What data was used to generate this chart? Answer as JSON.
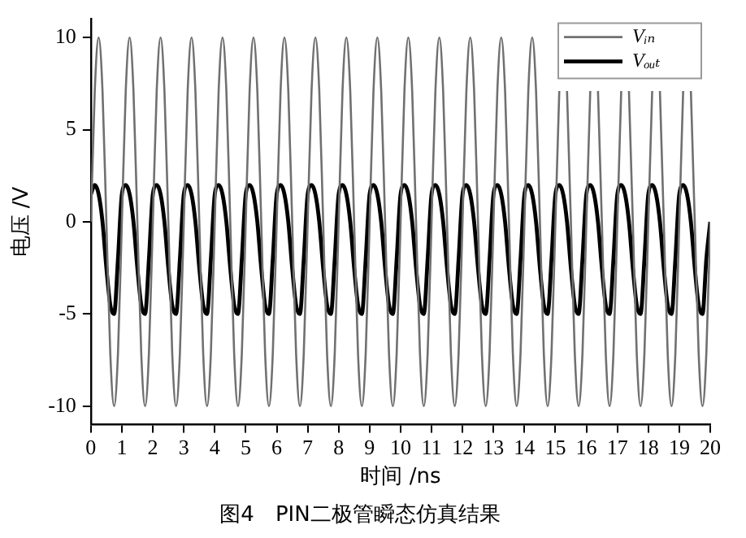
{
  "chart_data": {
    "type": "line",
    "title": "图4　PIN二极管瞬态仿真结果",
    "xlabel": "时间 /ns",
    "ylabel": "电压 /V",
    "xlim": [
      0,
      20
    ],
    "xticks": [
      0,
      1,
      2,
      3,
      4,
      5,
      6,
      7,
      8,
      9,
      10,
      11,
      12,
      13,
      14,
      15,
      16,
      17,
      18,
      19,
      20
    ],
    "ylim": [
      -11,
      11
    ],
    "yticks": [
      -10,
      -5,
      0,
      5,
      10
    ],
    "grid": false,
    "legend": "top right",
    "marker": "none",
    "line_style": "solid",
    "x": [
      0,
      0.125,
      0.25,
      0.375,
      0.5,
      0.625,
      0.75,
      0.875,
      1,
      1.125,
      1.25,
      1.375,
      1.5,
      1.625,
      1.75,
      1.875,
      2,
      2.125,
      2.25,
      2.375,
      2.5,
      2.625,
      2.75,
      2.875,
      3,
      3.125,
      3.25,
      3.375,
      3.5,
      3.625,
      3.75,
      3.875,
      4,
      4.125,
      4.25,
      4.375,
      4.5,
      4.625,
      4.75,
      4.875,
      5,
      5.125,
      5.25,
      5.375,
      5.5,
      5.625,
      5.75,
      5.875,
      6,
      6.125,
      6.25,
      6.375,
      6.5,
      6.625,
      6.75,
      6.875,
      7,
      7.125,
      7.25,
      7.375,
      7.5,
      7.625,
      7.75,
      7.875,
      8,
      8.125,
      8.25,
      8.375,
      8.5,
      8.625,
      8.75,
      8.875,
      9,
      9.125,
      9.25,
      9.375,
      9.5,
      9.625,
      9.75,
      9.875,
      10,
      10.125,
      10.25,
      10.375,
      10.5,
      10.625,
      10.75,
      10.875,
      11,
      11.125,
      11.25,
      11.375,
      11.5,
      11.625,
      11.75,
      11.875,
      12,
      12.125,
      12.25,
      12.375,
      12.5,
      12.625,
      12.75,
      12.875,
      13,
      13.125,
      13.25,
      13.375,
      13.5,
      13.625,
      13.75,
      13.875,
      14,
      14.125,
      14.25,
      14.375,
      14.5,
      14.625,
      14.75,
      14.875,
      15,
      15.125,
      15.25,
      15.375,
      15.5,
      15.625,
      15.75,
      15.875,
      16,
      16.125,
      16.25,
      16.375,
      16.5,
      16.625,
      16.75,
      16.875,
      17,
      17.125,
      17.25,
      17.375,
      17.5,
      17.625,
      17.75,
      17.875,
      18,
      18.125,
      18.25,
      18.375,
      18.5,
      18.625,
      18.75,
      18.875,
      19,
      19.125,
      19.25,
      19.375,
      19.5,
      19.625,
      19.75,
      19.875,
      20
    ],
    "series": [
      {
        "name": "Vᵢₙ",
        "color": "#707070",
        "values": [
          0,
          7.1,
          10,
          7.1,
          0,
          -7.1,
          -10,
          -7.1,
          0,
          7.1,
          10,
          7.1,
          0,
          -7.1,
          -10,
          -7.1,
          0,
          7.1,
          10,
          7.1,
          0,
          -7.1,
          -10,
          -7.1,
          0,
          7.1,
          10,
          7.1,
          0,
          -7.1,
          -10,
          -7.1,
          0,
          7.1,
          10,
          7.1,
          0,
          -7.1,
          -10,
          -7.1,
          0,
          7.1,
          10,
          7.1,
          0,
          -7.1,
          -10,
          -7.1,
          0,
          7.1,
          10,
          7.1,
          0,
          -7.1,
          -10,
          -7.1,
          0,
          7.1,
          10,
          7.1,
          0,
          -7.1,
          -10,
          -7.1,
          0,
          7.1,
          10,
          7.1,
          0,
          -7.1,
          -10,
          -7.1,
          0,
          7.1,
          10,
          7.1,
          0,
          -7.1,
          -10,
          -7.1,
          0,
          7.1,
          10,
          7.1,
          0,
          -7.1,
          -10,
          -7.1,
          0,
          7.1,
          10,
          7.1,
          0,
          -7.1,
          -10,
          -7.1,
          0,
          7.1,
          10,
          7.1,
          0,
          -7.1,
          -10,
          -7.1,
          0,
          7.1,
          10,
          7.1,
          0,
          -7.1,
          -10,
          -7.1,
          0,
          7.1,
          10,
          7.1,
          0,
          -7.1,
          -10,
          -7.1,
          0,
          7.1,
          null,
          7.1,
          0,
          -7.1,
          -10,
          -7.1,
          0,
          7.1,
          null,
          7.1,
          0,
          -7.1,
          -10,
          -7.1,
          0,
          7.1,
          null,
          7.1,
          0,
          -7.1,
          -10,
          -7.1,
          0,
          7.1,
          null,
          7.1,
          0,
          -7.1,
          -10,
          -7.1,
          0,
          7.1,
          null,
          7.1,
          0,
          -7.1,
          -10,
          -7.1,
          0
        ]
      },
      {
        "name": "Vₒᵤₜ",
        "color": "#000000",
        "values": [
          1.5,
          2,
          1.5,
          0,
          -2.5,
          -4.5,
          -5,
          -2,
          1.5,
          2,
          1.5,
          0,
          -2.5,
          -4.5,
          -5,
          -2,
          1.5,
          2,
          1.5,
          0,
          -2.5,
          -4.5,
          -5,
          -2,
          1.5,
          2,
          1.5,
          0,
          -2.5,
          -4.5,
          -5,
          -2,
          1.5,
          2,
          1.5,
          0,
          -2.5,
          -4.5,
          -5,
          -2,
          1.5,
          2,
          1.5,
          0,
          -2.5,
          -4.5,
          -5,
          -2,
          1.5,
          2,
          1.5,
          0,
          -2.5,
          -4.5,
          -5,
          -2,
          1.5,
          2,
          1.5,
          0,
          -2.5,
          -4.5,
          -5,
          -2,
          1.5,
          2,
          1.5,
          0,
          -2.5,
          -4.5,
          -5,
          -2,
          1.5,
          2,
          1.5,
          0,
          -2.5,
          -4.5,
          -5,
          -2,
          1.5,
          2,
          1.5,
          0,
          -2.5,
          -4.5,
          -5,
          -2,
          1.5,
          2,
          1.5,
          0,
          -2.5,
          -4.5,
          -5,
          -2,
          1.5,
          2,
          1.5,
          0,
          -2.5,
          -4.5,
          -5,
          -2,
          1.5,
          2,
          1.5,
          0,
          -2.5,
          -4.5,
          -5,
          -2,
          1.5,
          2,
          1.5,
          0,
          -2.5,
          -4.5,
          -5,
          -2,
          1.5,
          2,
          1.5,
          0,
          -2.5,
          -4.5,
          -5,
          -2,
          1.5,
          2,
          1.5,
          0,
          -2.5,
          -4.5,
          -5,
          -2,
          1.5,
          2,
          1.5,
          0,
          -2.5,
          -4.5,
          -5,
          -2,
          1.5,
          2,
          1.5,
          0,
          -2.5,
          -4.5,
          -5,
          -2,
          1.5,
          2,
          1.5,
          0,
          -2.5,
          -4.5,
          -5,
          -2,
          0
        ]
      }
    ]
  }
}
